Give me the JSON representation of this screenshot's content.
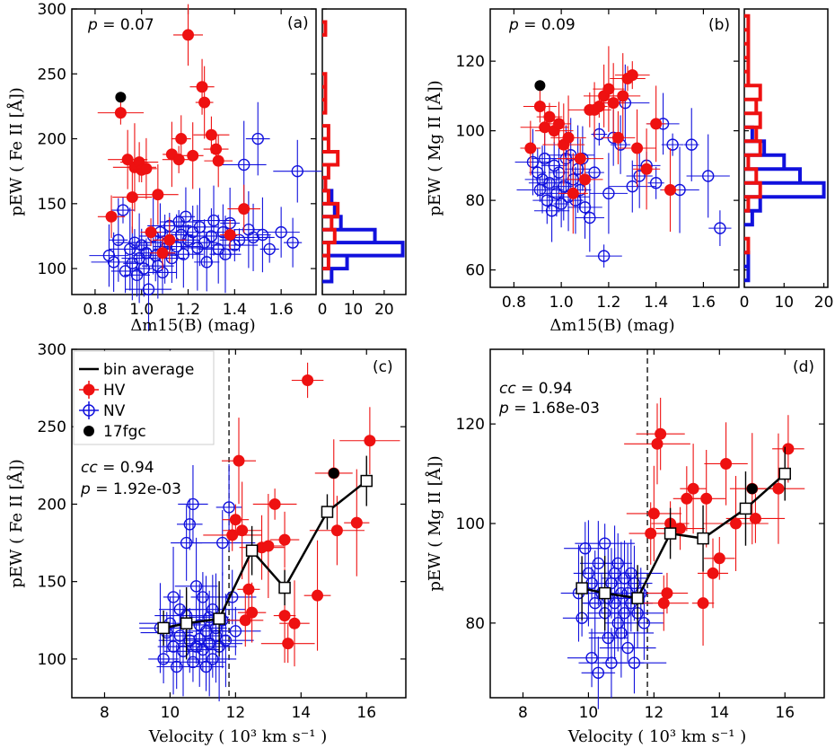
{
  "figure": {
    "colors": {
      "hv": "#ee1111",
      "nv": "#1111dd",
      "special": "#000000",
      "bin": "#000000"
    },
    "legend": {
      "items": [
        {
          "label": "bin average",
          "icon": "line"
        },
        {
          "label": "HV",
          "icon": "filled-circle-errorbar"
        },
        {
          "label": "NV",
          "icon": "open-circle-errorbar"
        },
        {
          "label": "17fgc",
          "icon": "black-circle"
        }
      ]
    }
  },
  "chart_data": [
    {
      "panel": "(a)",
      "type": "scatter",
      "annotation": {
        "p_label": "p",
        "p_value": "= 0.07"
      },
      "xlabel": "Δm15(B) (mag)",
      "ylabel": "pEW ( Fe II [Å])",
      "xlim": [
        0.7,
        1.75
      ],
      "ylim": [
        80,
        300
      ],
      "xticks": [
        "0.8",
        "1.0",
        "1.2",
        "1.4",
        "1.6"
      ],
      "yticks": [
        "100",
        "150",
        "200",
        "250",
        "300"
      ],
      "series": [
        {
          "name": "HV",
          "x": [
            0.87,
            0.91,
            0.94,
            0.96,
            0.97,
            0.99,
            1.0,
            1.02,
            1.04,
            1.07,
            1.09,
            1.12,
            1.13,
            1.16,
            1.17,
            1.2,
            1.22,
            1.26,
            1.27,
            1.3,
            1.32,
            1.33,
            1.38,
            1.44
          ],
          "y": [
            140,
            220,
            184,
            155,
            178,
            182,
            176,
            177,
            128,
            157,
            112,
            122,
            188,
            184,
            200,
            280,
            187,
            240,
            228,
            203,
            192,
            183,
            126,
            146
          ]
        },
        {
          "name": "NV",
          "x": [
            0.86,
            0.88,
            0.9,
            0.92,
            0.93,
            0.95,
            0.96,
            0.97,
            0.98,
            0.99,
            1.0,
            1.01,
            1.02,
            1.03,
            1.05,
            1.06,
            1.07,
            1.08,
            1.09,
            1.1,
            1.11,
            1.12,
            1.13,
            1.15,
            1.16,
            1.17,
            1.18,
            1.19,
            1.2,
            1.22,
            1.24,
            1.25,
            1.27,
            1.28,
            1.3,
            1.31,
            1.33,
            1.35,
            1.36,
            1.38,
            1.4,
            1.42,
            1.44,
            1.46,
            1.48,
            1.5,
            1.52,
            1.55,
            1.6,
            1.65,
            1.67
          ],
          "y": [
            110,
            105,
            122,
            145,
            98,
            115,
            104,
            120,
            95,
            108,
            118,
            100,
            112,
            84,
            125,
            110,
            102,
            128,
            97,
            115,
            120,
            133,
            108,
            117,
            136,
            126,
            111,
            140,
            122,
            128,
            116,
            132,
            120,
            105,
            125,
            137,
            115,
            128,
            111,
            135,
            118,
            122,
            180,
            130,
            124,
            200,
            126,
            115,
            128,
            120,
            175
          ]
        },
        {
          "name": "17fgc",
          "x": [
            0.91
          ],
          "y": [
            232
          ]
        }
      ],
      "histogram": {
        "xlim": [
          0,
          27
        ],
        "xticks": [
          "0",
          "10",
          "20"
        ],
        "bins_y": [
          [
            80,
            90
          ],
          [
            90,
            100
          ],
          [
            100,
            110
          ],
          [
            110,
            120
          ],
          [
            120,
            130
          ],
          [
            130,
            140
          ],
          [
            140,
            150
          ],
          [
            150,
            160
          ],
          [
            160,
            170
          ],
          [
            170,
            180
          ],
          [
            180,
            190
          ],
          [
            190,
            200
          ],
          [
            200,
            210
          ],
          [
            210,
            220
          ],
          [
            220,
            230
          ],
          [
            230,
            240
          ],
          [
            240,
            250
          ],
          [
            250,
            260
          ],
          [
            260,
            270
          ],
          [
            270,
            280
          ],
          [
            280,
            290
          ]
        ],
        "HV": [
          0,
          0,
          2,
          2,
          4,
          3,
          5,
          2,
          1,
          2,
          5,
          2,
          2,
          0,
          1,
          1,
          1,
          0,
          0,
          0,
          1
        ],
        "NV": [
          0,
          3,
          8,
          26,
          17,
          6,
          4,
          3,
          1,
          0,
          0,
          0,
          0,
          0,
          0,
          0,
          0,
          0,
          0,
          0,
          0
        ]
      }
    },
    {
      "panel": "(b)",
      "type": "scatter",
      "annotation": {
        "p_label": "p",
        "p_value": "= 0.09"
      },
      "xlabel": "Δm15(B) (mag)",
      "ylabel": "pEW ( Mg II [Å])",
      "xlim": [
        0.7,
        1.75
      ],
      "ylim": [
        55,
        135
      ],
      "xticks": [
        "0.8",
        "1.0",
        "1.2",
        "1.4",
        "1.6"
      ],
      "yticks": [
        "60",
        "80",
        "100",
        "120"
      ],
      "series": [
        {
          "name": "HV",
          "x": [
            0.87,
            0.91,
            0.93,
            0.95,
            0.97,
            0.99,
            1.01,
            1.03,
            1.05,
            1.08,
            1.1,
            1.12,
            1.14,
            1.16,
            1.18,
            1.2,
            1.22,
            1.24,
            1.26,
            1.28,
            1.3,
            1.32,
            1.36,
            1.4,
            1.46
          ],
          "y": [
            95,
            107,
            101,
            104,
            100,
            102,
            96,
            98,
            82,
            92,
            86,
            106,
            106,
            107,
            110,
            112,
            108,
            98,
            110,
            115,
            116,
            95,
            89,
            102,
            83
          ]
        },
        {
          "name": "NV",
          "x": [
            0.88,
            0.9,
            0.91,
            0.92,
            0.93,
            0.94,
            0.95,
            0.96,
            0.97,
            0.98,
            0.99,
            1.0,
            1.01,
            1.02,
            1.03,
            1.04,
            1.05,
            1.06,
            1.07,
            1.08,
            1.09,
            1.1,
            1.12,
            1.14,
            1.16,
            1.18,
            1.2,
            1.22,
            1.25,
            1.27,
            1.3,
            1.33,
            1.36,
            1.4,
            1.43,
            1.47,
            1.5,
            1.55,
            1.62,
            1.67
          ],
          "y": [
            91,
            88,
            83,
            86,
            92,
            80,
            85,
            77,
            90,
            82,
            88,
            79,
            84,
            92,
            81,
            93,
            86,
            80,
            89,
            83,
            92,
            78,
            75,
            88,
            99,
            64,
            82,
            98,
            96,
            108,
            84,
            87,
            90,
            85,
            102,
            96,
            83,
            96,
            87,
            72
          ]
        },
        {
          "name": "17fgc",
          "x": [
            0.91
          ],
          "y": [
            113
          ]
        }
      ],
      "histogram": {
        "xlim": [
          0,
          21
        ],
        "xticks": [
          "0",
          "10",
          "20"
        ],
        "bins_y": [
          [
            57,
            61
          ],
          [
            61,
            65
          ],
          [
            65,
            69
          ],
          [
            69,
            73
          ],
          [
            73,
            77
          ],
          [
            77,
            81
          ],
          [
            81,
            85
          ],
          [
            85,
            89
          ],
          [
            89,
            93
          ],
          [
            93,
            97
          ],
          [
            97,
            101
          ],
          [
            101,
            105
          ],
          [
            105,
            109
          ],
          [
            109,
            113
          ],
          [
            113,
            117
          ],
          [
            117,
            121
          ],
          [
            121,
            125
          ],
          [
            125,
            129
          ],
          [
            129,
            133
          ]
        ],
        "HV": [
          0,
          0,
          1,
          0,
          0,
          1,
          4,
          3,
          1,
          4,
          3,
          4,
          3,
          4,
          1,
          1,
          1,
          1,
          1
        ],
        "NV": [
          1,
          1,
          0,
          0,
          2,
          4,
          20,
          14,
          10,
          5,
          2,
          0,
          0,
          0,
          0,
          0,
          0,
          0,
          0
        ]
      }
    },
    {
      "panel": "(c)",
      "type": "scatter",
      "annotation": {
        "cc_label": "cc",
        "cc_value": "= 0.94",
        "p_label": "p",
        "p_value": "= 1.92e-03"
      },
      "xlabel": "Velocity ( 10³ km s⁻¹ )",
      "ylabel": "pEW ( Fe II [Å])",
      "xlim": [
        7.0,
        17.2
      ],
      "ylim": [
        75,
        300
      ],
      "xticks": [
        "8",
        "10",
        "12",
        "14",
        "16"
      ],
      "yticks": [
        "100",
        "150",
        "200",
        "250",
        "300"
      ],
      "vline": 11.8,
      "series": [
        {
          "name": "HV",
          "x": [
            11.9,
            12.0,
            12.1,
            12.2,
            12.3,
            12.4,
            12.5,
            12.8,
            13.0,
            13.2,
            13.5,
            13.5,
            13.6,
            13.8,
            14.2,
            14.5,
            15.0,
            15.1,
            15.7,
            16.1
          ],
          "y": [
            180,
            190,
            228,
            183,
            125,
            145,
            130,
            172,
            173,
            200,
            128,
            177,
            110,
            123,
            280,
            141,
            220,
            183,
            188,
            241
          ]
        },
        {
          "name": "NV",
          "x": [
            9.7,
            9.8,
            9.9,
            10.0,
            10.1,
            10.1,
            10.2,
            10.3,
            10.3,
            10.4,
            10.5,
            10.5,
            10.6,
            10.6,
            10.7,
            10.7,
            10.8,
            10.8,
            10.9,
            10.9,
            11.0,
            11.0,
            11.1,
            11.1,
            11.2,
            11.2,
            11.3,
            11.3,
            11.4,
            11.4,
            11.5,
            11.6,
            11.6,
            11.7,
            11.8,
            11.9,
            12.0
          ],
          "y": [
            120,
            100,
            117,
            123,
            108,
            140,
            95,
            132,
            115,
            105,
            175,
            128,
            187,
            112,
            200,
            98,
            108,
            147,
            122,
            113,
            140,
            106,
            118,
            95,
            127,
            110,
            100,
            132,
            120,
            115,
            108,
            175,
            125,
            112,
            198,
            140,
            118
          ]
        },
        {
          "name": "17fgc",
          "x": [
            15.0
          ],
          "y": [
            220
          ]
        },
        {
          "name": "bin average",
          "x": [
            9.8,
            10.5,
            11.5,
            12.5,
            13.5,
            14.8,
            16.0
          ],
          "y": [
            120,
            123,
            126,
            170,
            146,
            195,
            215
          ]
        }
      ]
    },
    {
      "panel": "(d)",
      "type": "scatter",
      "annotation": {
        "cc_label": "cc",
        "cc_value": "= 0.94",
        "p_label": "p",
        "p_value": "= 1.68e-03"
      },
      "xlabel": "Velocity ( 10³ km s⁻¹ )",
      "ylabel": "pEW ( Mg II [Å])",
      "xlim": [
        7.0,
        17.2
      ],
      "ylim": [
        65,
        135
      ],
      "xticks": [
        "8",
        "10",
        "12",
        "14",
        "16"
      ],
      "yticks": [
        "80",
        "100",
        "120"
      ],
      "vline": 11.8,
      "series": [
        {
          "name": "HV",
          "x": [
            11.9,
            12.0,
            12.1,
            12.2,
            12.3,
            12.4,
            12.5,
            12.8,
            13.0,
            13.2,
            13.5,
            13.6,
            13.8,
            14.0,
            14.2,
            14.5,
            15.0,
            15.1,
            15.8,
            16.1
          ],
          "y": [
            98,
            102,
            116,
            118,
            84,
            86,
            100,
            99,
            105,
            107,
            84,
            105,
            90,
            93,
            112,
            100,
            107,
            101,
            107,
            115
          ]
        },
        {
          "name": "NV",
          "x": [
            9.7,
            9.8,
            9.9,
            10.0,
            10.1,
            10.1,
            10.2,
            10.3,
            10.3,
            10.4,
            10.5,
            10.5,
            10.6,
            10.6,
            10.7,
            10.7,
            10.8,
            10.8,
            10.9,
            10.9,
            11.0,
            11.0,
            11.1,
            11.1,
            11.2,
            11.2,
            11.3,
            11.3,
            11.4,
            11.4,
            11.5,
            11.6,
            11.7
          ],
          "y": [
            86,
            81,
            95,
            90,
            88,
            73,
            84,
            92,
            70,
            86,
            82,
            96,
            85,
            77,
            88,
            72,
            90,
            84,
            80,
            92,
            86,
            78,
            82,
            89,
            75,
            86,
            84,
            90,
            72,
            88,
            82,
            86,
            80
          ]
        },
        {
          "name": "17fgc",
          "x": [
            15.0
          ],
          "y": [
            107
          ]
        },
        {
          "name": "bin average",
          "x": [
            9.8,
            10.5,
            11.5,
            12.5,
            13.5,
            14.8,
            16.0
          ],
          "y": [
            87,
            86,
            85,
            98,
            97,
            103,
            110
          ]
        }
      ]
    }
  ]
}
